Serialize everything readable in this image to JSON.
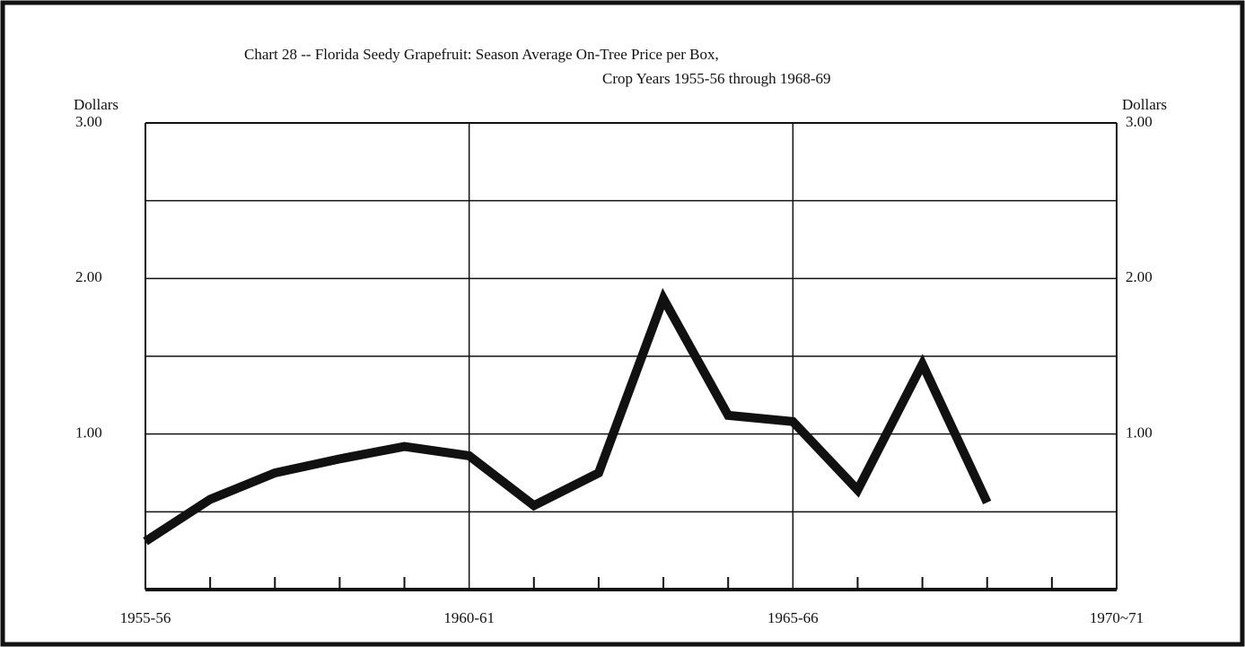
{
  "chart_data": {
    "type": "line",
    "title": "Chart 28 -- Florida Seedy Grapefruit:  Season Average On-Tree Price per Box,",
    "subtitle": "Crop Years 1955-56 through 1968-69",
    "y_label": "Dollars",
    "y2_label": "Dollars",
    "x": [
      1955,
      1956,
      1957,
      1958,
      1959,
      1960,
      1961,
      1962,
      1963,
      1964,
      1965,
      1966,
      1967,
      1968
    ],
    "series": [
      {
        "color": "#111111",
        "values": [
          0.31,
          0.58,
          0.75,
          0.84,
          0.92,
          0.86,
          0.54,
          0.75,
          1.87,
          1.12,
          1.08,
          0.64,
          1.45,
          0.56
        ]
      }
    ],
    "xlim": [
      1955,
      1970
    ],
    "xticks": [
      {
        "value": 1955,
        "label": "1955-56"
      },
      {
        "value": 1960,
        "label": "1960-61"
      },
      {
        "value": 1965,
        "label": "1965-66"
      },
      {
        "value": 1970,
        "label": "1970~71"
      }
    ],
    "xticks_minor": [
      1956,
      1957,
      1958,
      1959,
      1961,
      1962,
      1963,
      1964,
      1966,
      1967,
      1968,
      1969
    ],
    "ylim": [
      0,
      3
    ],
    "yticks": [
      {
        "value": 1,
        "label": "1.00"
      },
      {
        "value": 2,
        "label": "2.00"
      },
      {
        "value": 3,
        "label": "3.00"
      }
    ],
    "ygrid_minor": [
      0.5,
      1.5,
      2.5
    ],
    "grid": true
  }
}
